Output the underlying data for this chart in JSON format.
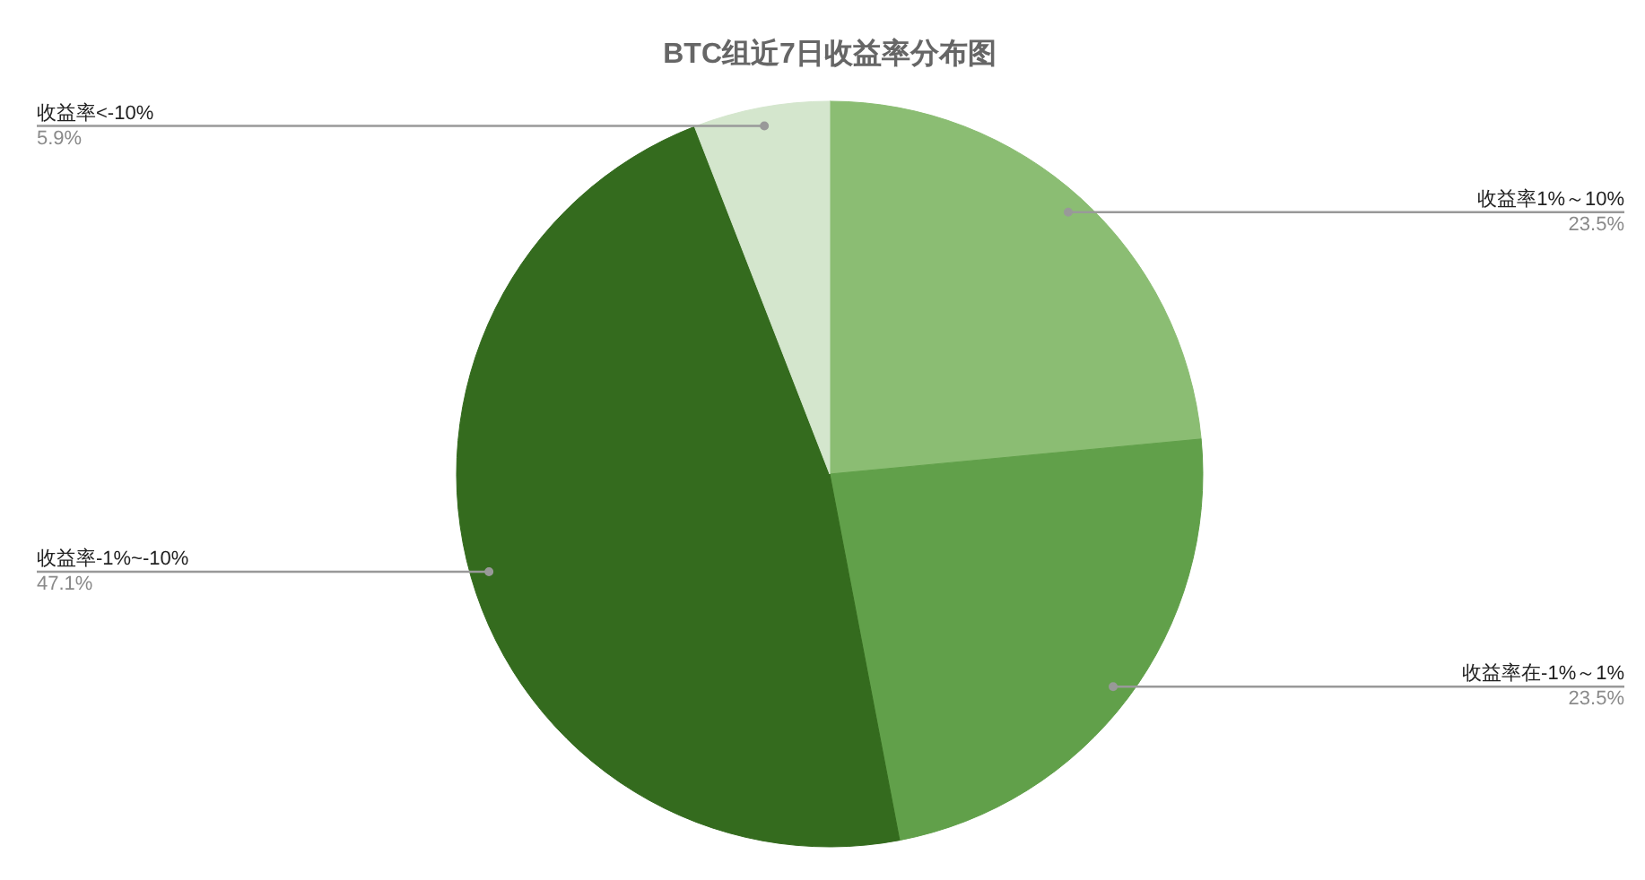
{
  "chart_data": {
    "type": "pie",
    "title": "BTC组近7日收益率分布图",
    "categories": [
      "收益率1%～10%",
      "收益率在-1%～1%",
      "收益率-1%~-10%",
      "收益率<-10%"
    ],
    "values": [
      23.5,
      23.5,
      47.1,
      5.9
    ],
    "colors": [
      "#8bbd73",
      "#61a04a",
      "#346b1e",
      "#d4e6cd"
    ],
    "value_labels": [
      "23.5%",
      "23.5%",
      "47.1%",
      "5.9%"
    ]
  }
}
